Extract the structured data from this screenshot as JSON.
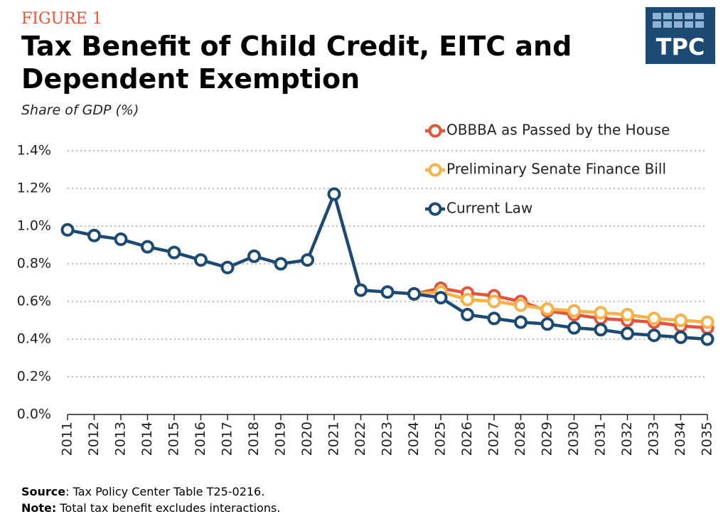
{
  "chart_data": {
    "type": "line",
    "figure_label": "FIGURE 1",
    "title": "Tax Benefit of Child Credit, EITC and Dependent Exemption",
    "y_axis_label": "Share of GDP (%)",
    "logo": "TPC",
    "categories": [
      "2011",
      "2012",
      "2013",
      "2014",
      "2015",
      "2016",
      "2017",
      "2018",
      "2019",
      "2020",
      "2021",
      "2022",
      "2023",
      "2024",
      "2025",
      "2026",
      "2027",
      "2028",
      "2029",
      "2030",
      "2031",
      "2032",
      "2033",
      "2034",
      "2035"
    ],
    "series": [
      {
        "name": "OBBBA as Passed by the House",
        "color": "#e2553b",
        "values": [
          null,
          null,
          null,
          null,
          null,
          null,
          null,
          null,
          null,
          null,
          null,
          null,
          null,
          0.64,
          0.67,
          0.645,
          0.63,
          0.6,
          0.55,
          0.53,
          0.51,
          0.5,
          0.49,
          0.47,
          0.46
        ]
      },
      {
        "name": "Preliminary Senate Finance Bill",
        "color": "#f6b24a",
        "values": [
          null,
          null,
          null,
          null,
          null,
          null,
          null,
          null,
          null,
          null,
          null,
          null,
          null,
          0.64,
          0.65,
          0.61,
          0.6,
          0.58,
          0.56,
          0.55,
          0.54,
          0.53,
          0.51,
          0.5,
          0.49
        ]
      },
      {
        "name": "Current Law",
        "color": "#1d4a73",
        "values": [
          0.98,
          0.95,
          0.93,
          0.89,
          0.86,
          0.82,
          0.78,
          0.84,
          0.8,
          0.82,
          1.17,
          0.66,
          0.65,
          0.64,
          0.62,
          0.53,
          0.51,
          0.49,
          0.48,
          0.46,
          0.45,
          0.43,
          0.42,
          0.41,
          0.4
        ]
      }
    ],
    "ylim": [
      0,
      1.4
    ],
    "yticks": [
      {
        "value": 0,
        "label": "0.0%"
      },
      {
        "value": 0.2,
        "label": "0.2%"
      },
      {
        "value": 0.4,
        "label": "0.4%"
      },
      {
        "value": 0.6,
        "label": "0.6%"
      },
      {
        "value": 0.8,
        "label": "0.8%"
      },
      {
        "value": 1.0,
        "label": "1.0%"
      },
      {
        "value": 1.2,
        "label": "1.2%"
      },
      {
        "value": 1.4,
        "label": "1.4%"
      }
    ],
    "grid": true,
    "legend": "top-right",
    "source_label": "Source",
    "source_text": ": Tax Policy Center Table T25-0216.",
    "note_label": "Note:",
    "note_text": " Total tax benefit excludes interactions."
  }
}
